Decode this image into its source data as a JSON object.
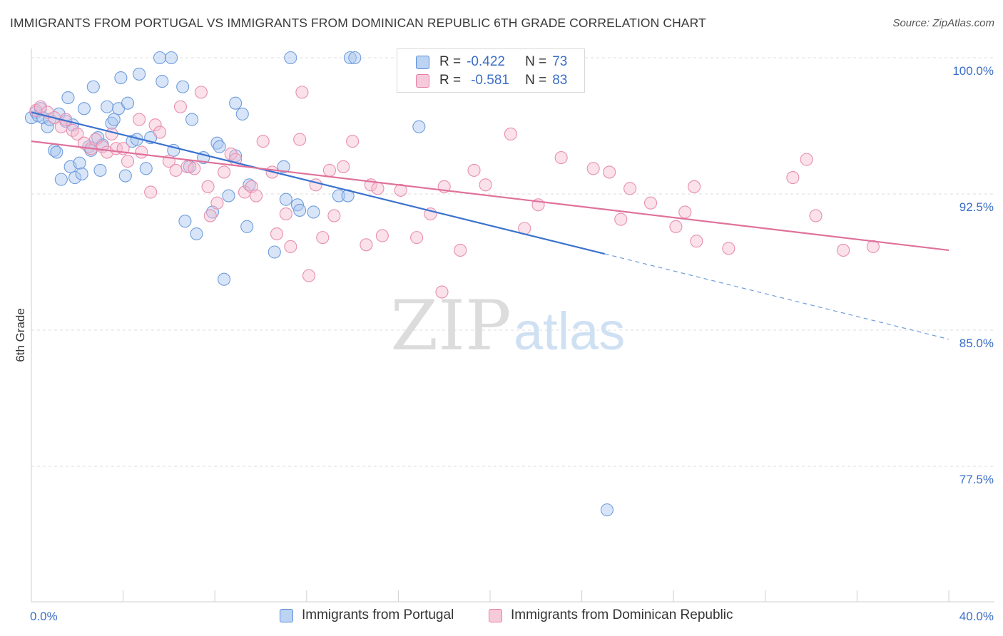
{
  "title": "IMMIGRANTS FROM PORTUGAL VS IMMIGRANTS FROM DOMINICAN REPUBLIC 6TH GRADE CORRELATION CHART",
  "source": "Source: ZipAtlas.com",
  "watermark": {
    "zip": "ZIP",
    "atlas": "atlas"
  },
  "colors": {
    "blue": "#5b8ed6",
    "blue_fill": "#a9c6ef",
    "pink": "#e57fa2",
    "pink_fill": "#f4bcd0",
    "axis_text": "#3a6ec6"
  },
  "stats": {
    "r_label": "R =",
    "n_label": "N =",
    "portugal": {
      "r": "-0.422",
      "n": "73"
    },
    "dominican": {
      "r": "-0.581",
      "n": "83"
    }
  },
  "chart_data": {
    "type": "scatter",
    "ylabel": "6th Grade",
    "xlim": [
      0,
      40
    ],
    "ylim": [
      71,
      101.5
    ],
    "x_tick_labels": [
      "0.0%",
      "40.0%"
    ],
    "y_ticks": [
      77.5,
      85.0,
      92.5,
      100.0
    ],
    "y_tick_labels": [
      "77.5%",
      "85.0%",
      "92.5%",
      "100.0%"
    ],
    "grid": true,
    "legend": [
      "Immigrants from Portugal",
      "Immigrants from Dominican Republic"
    ],
    "series": [
      {
        "name": "Immigrants from Portugal",
        "color": "#5b8ed6",
        "trend": {
          "x0": 0,
          "y0": 97.0,
          "x1": 25,
          "y1": 89.2,
          "dash_to_x": 40,
          "dash_to_y": 84.5
        },
        "points": [
          [
            0.0,
            96.7
          ],
          [
            0.2,
            97.0
          ],
          [
            0.3,
            96.8
          ],
          [
            0.4,
            97.2
          ],
          [
            0.5,
            96.7
          ],
          [
            0.7,
            96.2
          ],
          [
            0.8,
            96.6
          ],
          [
            1.0,
            94.9
          ],
          [
            1.1,
            94.8
          ],
          [
            1.2,
            96.9
          ],
          [
            1.3,
            93.3
          ],
          [
            1.5,
            96.5
          ],
          [
            1.6,
            97.8
          ],
          [
            1.7,
            94.0
          ],
          [
            1.8,
            96.3
          ],
          [
            1.9,
            93.4
          ],
          [
            2.1,
            94.2
          ],
          [
            2.2,
            93.6
          ],
          [
            2.3,
            97.2
          ],
          [
            2.5,
            95.1
          ],
          [
            2.6,
            94.9
          ],
          [
            2.7,
            98.4
          ],
          [
            2.9,
            95.6
          ],
          [
            3.0,
            93.8
          ],
          [
            3.1,
            95.2
          ],
          [
            3.3,
            97.3
          ],
          [
            3.5,
            96.4
          ],
          [
            3.6,
            96.6
          ],
          [
            3.8,
            97.2
          ],
          [
            3.9,
            98.9
          ],
          [
            4.1,
            93.5
          ],
          [
            4.2,
            97.5
          ],
          [
            4.4,
            95.4
          ],
          [
            4.6,
            95.5
          ],
          [
            4.7,
            99.1
          ],
          [
            5.0,
            93.9
          ],
          [
            5.2,
            95.6
          ],
          [
            5.6,
            100.0
          ],
          [
            5.7,
            98.7
          ],
          [
            6.1,
            100.0
          ],
          [
            6.2,
            94.9
          ],
          [
            6.6,
            98.4
          ],
          [
            6.7,
            91.0
          ],
          [
            6.9,
            94.0
          ],
          [
            7.0,
            96.6
          ],
          [
            7.2,
            90.3
          ],
          [
            7.5,
            94.5
          ],
          [
            7.9,
            91.5
          ],
          [
            8.1,
            95.3
          ],
          [
            8.2,
            95.1
          ],
          [
            8.4,
            87.8
          ],
          [
            8.6,
            92.4
          ],
          [
            8.9,
            94.6
          ],
          [
            8.9,
            97.5
          ],
          [
            9.2,
            96.9
          ],
          [
            9.5,
            93.0
          ],
          [
            9.4,
            90.7
          ],
          [
            10.6,
            89.3
          ],
          [
            11.0,
            94.0
          ],
          [
            11.1,
            92.2
          ],
          [
            11.3,
            100.0
          ],
          [
            11.6,
            91.9
          ],
          [
            11.7,
            91.6
          ],
          [
            12.3,
            91.5
          ],
          [
            13.4,
            92.4
          ],
          [
            13.8,
            92.4
          ],
          [
            13.9,
            100.0
          ],
          [
            14.1,
            100.0
          ],
          [
            16.7,
            100.0
          ],
          [
            16.9,
            96.2
          ],
          [
            25.1,
            75.1
          ]
        ]
      },
      {
        "name": "Immigrants from Dominican Republic",
        "color": "#e57fa2",
        "trend": {
          "x0": 0,
          "y0": 95.4,
          "x1": 40,
          "y1": 89.4
        },
        "points": [
          [
            0.2,
            97.1
          ],
          [
            0.4,
            97.3
          ],
          [
            0.7,
            97.0
          ],
          [
            1.0,
            96.7
          ],
          [
            1.3,
            96.2
          ],
          [
            1.5,
            96.6
          ],
          [
            1.8,
            96.0
          ],
          [
            2.0,
            95.8
          ],
          [
            2.3,
            95.3
          ],
          [
            2.6,
            95.0
          ],
          [
            2.8,
            95.5
          ],
          [
            3.1,
            95.1
          ],
          [
            3.3,
            94.8
          ],
          [
            3.5,
            95.8
          ],
          [
            3.7,
            95.0
          ],
          [
            4.0,
            95.0
          ],
          [
            4.2,
            94.3
          ],
          [
            4.7,
            96.6
          ],
          [
            4.8,
            94.8
          ],
          [
            5.2,
            92.6
          ],
          [
            5.4,
            96.3
          ],
          [
            5.6,
            95.9
          ],
          [
            6.0,
            94.3
          ],
          [
            6.3,
            93.8
          ],
          [
            6.5,
            97.3
          ],
          [
            6.8,
            94.0
          ],
          [
            7.1,
            93.9
          ],
          [
            7.4,
            98.1
          ],
          [
            7.7,
            92.9
          ],
          [
            7.8,
            91.3
          ],
          [
            8.1,
            92.0
          ],
          [
            8.4,
            93.7
          ],
          [
            8.7,
            94.7
          ],
          [
            8.9,
            94.4
          ],
          [
            9.3,
            92.6
          ],
          [
            9.6,
            92.9
          ],
          [
            9.8,
            92.4
          ],
          [
            10.1,
            95.4
          ],
          [
            10.5,
            93.7
          ],
          [
            10.7,
            90.3
          ],
          [
            11.1,
            91.4
          ],
          [
            11.3,
            89.6
          ],
          [
            11.7,
            95.5
          ],
          [
            11.8,
            98.1
          ],
          [
            12.1,
            88.0
          ],
          [
            12.4,
            93.0
          ],
          [
            12.7,
            90.1
          ],
          [
            13.0,
            93.8
          ],
          [
            13.2,
            91.3
          ],
          [
            13.6,
            94.0
          ],
          [
            14.0,
            95.4
          ],
          [
            14.6,
            89.7
          ],
          [
            14.8,
            93.0
          ],
          [
            15.1,
            92.8
          ],
          [
            15.3,
            90.2
          ],
          [
            16.1,
            92.7
          ],
          [
            16.8,
            90.1
          ],
          [
            17.4,
            91.4
          ],
          [
            17.9,
            87.1
          ],
          [
            18.0,
            92.9
          ],
          [
            18.7,
            89.4
          ],
          [
            19.3,
            93.8
          ],
          [
            19.8,
            93.0
          ],
          [
            20.9,
            95.8
          ],
          [
            21.5,
            90.6
          ],
          [
            22.1,
            91.9
          ],
          [
            23.1,
            94.5
          ],
          [
            24.5,
            93.9
          ],
          [
            25.2,
            93.7
          ],
          [
            25.7,
            91.1
          ],
          [
            26.1,
            92.8
          ],
          [
            27.0,
            92.0
          ],
          [
            28.1,
            90.7
          ],
          [
            28.5,
            91.5
          ],
          [
            28.9,
            92.9
          ],
          [
            29.0,
            89.9
          ],
          [
            30.4,
            89.5
          ],
          [
            33.2,
            93.4
          ],
          [
            33.8,
            94.4
          ],
          [
            34.2,
            91.3
          ],
          [
            35.4,
            89.4
          ],
          [
            36.7,
            89.6
          ]
        ]
      }
    ]
  }
}
